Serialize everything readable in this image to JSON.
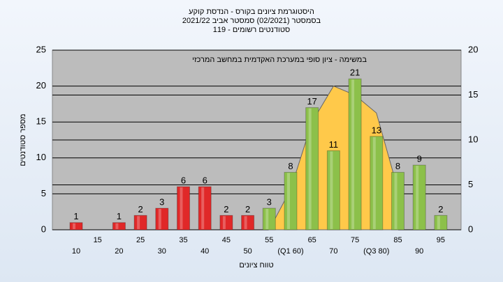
{
  "chart_data": {
    "type": "bar",
    "title": "היסטוגרמת ציונים בקורס - הנדסת קוקע",
    "subtitle": "בסמסטר  (02/2021)  סמסטר אביב 2021/22",
    "subtitle2": "סטודנטים רשומים - 119",
    "annotation": "במשימה - ציון סופי במערכת האקדמית במחשב המרכזי",
    "xlabel": "טווח ציונים",
    "ylabel": "מספר סטודנטים",
    "categories": [
      "10",
      "15",
      "20",
      "25",
      "30",
      "35",
      "40",
      "45",
      "50",
      "55",
      "(Q1 60)",
      "65",
      "70",
      "75",
      "(Q3 80)",
      "85",
      "90",
      "95"
    ],
    "values": [
      1,
      null,
      1,
      2,
      3,
      6,
      6,
      2,
      2,
      3,
      8,
      17,
      11,
      21,
      13,
      8,
      9,
      2
    ],
    "colors": [
      "#e02828",
      "#e02828",
      "#e02828",
      "#e02828",
      "#e02828",
      "#e02828",
      "#e02828",
      "#e02828",
      "#e02828",
      "#8cc04a",
      "#8cc04a",
      "#8cc04a",
      "#8cc04a",
      "#8cc04a",
      "#8cc04a",
      "#8cc04a",
      "#8cc04a",
      "#8cc04a"
    ],
    "area": {
      "color": "#ffc94a",
      "axis": "y2",
      "values": [
        null,
        null,
        null,
        null,
        null,
        null,
        null,
        null,
        null,
        0,
        4.5,
        12,
        16,
        15,
        13,
        4.5,
        null,
        null
      ]
    },
    "ylim": [
      0,
      25
    ],
    "yticks": [
      0,
      5,
      10,
      15,
      20,
      25
    ],
    "y2lim": [
      0,
      20
    ],
    "y2ticks": [
      0,
      5,
      10,
      15,
      20
    ],
    "grid": true
  }
}
